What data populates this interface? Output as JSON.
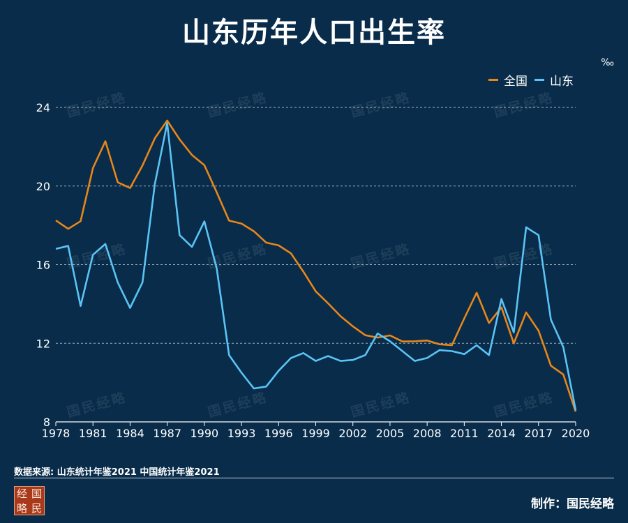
{
  "page": {
    "title": "山东历年人口出生率",
    "unit": "‰",
    "source": "数据来源: 山东统计年鉴2021 中国统计年鉴2021",
    "maker": "制作：国民经略",
    "logo_chars": [
      "经",
      "国",
      "略",
      "民"
    ],
    "watermark": "国民经略"
  },
  "colors": {
    "background": "#082c4a",
    "china": "#e8861a",
    "shandong": "#5bc3f5",
    "grid": "#c8d4de"
  },
  "chart_data": {
    "type": "line",
    "x": [
      1978,
      1979,
      1980,
      1981,
      1982,
      1983,
      1984,
      1985,
      1986,
      1987,
      1988,
      1989,
      1990,
      1991,
      1992,
      1993,
      1994,
      1995,
      1996,
      1997,
      1998,
      1999,
      2000,
      2001,
      2002,
      2003,
      2004,
      2005,
      2006,
      2007,
      2008,
      2009,
      2010,
      2011,
      2012,
      2013,
      2014,
      2015,
      2016,
      2017,
      2018,
      2019,
      2020
    ],
    "xticks": [
      1978,
      1981,
      1984,
      1987,
      1990,
      1993,
      1996,
      1999,
      2002,
      2005,
      2008,
      2011,
      2014,
      2017,
      2020
    ],
    "yticks": [
      8,
      12,
      16,
      20,
      24
    ],
    "ylim": [
      8,
      24
    ],
    "xlim": [
      1978,
      2020
    ],
    "grid": "horizontal dashed",
    "legend_position": "top-right",
    "series": [
      {
        "name": "全国",
        "color": "#e8861a",
        "values": [
          18.25,
          17.82,
          18.21,
          20.91,
          22.28,
          20.19,
          19.9,
          21.04,
          22.43,
          23.33,
          22.37,
          21.58,
          21.06,
          19.68,
          18.24,
          18.09,
          17.7,
          17.12,
          16.98,
          16.57,
          15.64,
          14.64,
          14.03,
          13.38,
          12.86,
          12.41,
          12.29,
          12.4,
          12.09,
          12.1,
          12.14,
          11.95,
          11.9,
          13.27,
          14.57,
          13.03,
          13.83,
          11.99,
          13.57,
          12.64,
          10.86,
          10.41,
          8.52
        ]
      },
      {
        "name": "山东",
        "color": "#5bc3f5",
        "values": [
          16.8,
          16.95,
          13.9,
          16.5,
          17.05,
          15.1,
          13.8,
          15.1,
          20.1,
          23.2,
          17.5,
          16.9,
          18.2,
          15.8,
          11.4,
          10.5,
          9.7,
          9.8,
          10.6,
          11.25,
          11.5,
          11.1,
          11.35,
          11.1,
          11.15,
          11.4,
          12.5,
          12.1,
          11.6,
          11.1,
          11.25,
          11.65,
          11.6,
          11.45,
          11.9,
          11.4,
          14.25,
          12.55,
          17.9,
          17.5,
          13.2,
          11.8,
          8.6
        ]
      }
    ]
  }
}
